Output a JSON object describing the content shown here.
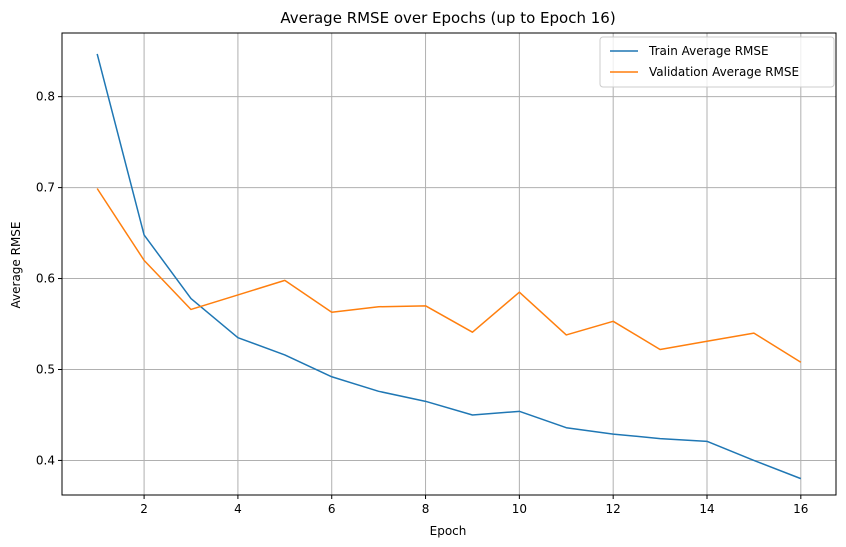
{
  "chart_data": {
    "type": "line",
    "title": "Average RMSE over Epochs (up to Epoch 16)",
    "xlabel": "Epoch",
    "ylabel": "Average RMSE",
    "x": [
      1,
      2,
      3,
      4,
      5,
      6,
      7,
      8,
      9,
      10,
      11,
      12,
      13,
      14,
      15,
      16
    ],
    "xlim": [
      0.25,
      16.75
    ],
    "ylim": [
      0.362,
      0.87
    ],
    "xticks": [
      2,
      4,
      6,
      8,
      10,
      12,
      14,
      16
    ],
    "yticks": [
      0.4,
      0.5,
      0.6,
      0.7,
      0.8
    ],
    "xtick_labels": [
      "2",
      "4",
      "6",
      "8",
      "10",
      "12",
      "14",
      "16"
    ],
    "ytick_labels": [
      "0.4",
      "0.5",
      "0.6",
      "0.7",
      "0.8"
    ],
    "grid": true,
    "legend_position": "top-right",
    "series": [
      {
        "name": "Train Average RMSE",
        "color": "#1f77b4",
        "values": [
          0.847,
          0.648,
          0.578,
          0.535,
          0.516,
          0.492,
          0.476,
          0.465,
          0.45,
          0.454,
          0.436,
          0.429,
          0.424,
          0.421,
          0.4,
          0.38
        ]
      },
      {
        "name": "Validation Average RMSE",
        "color": "#ff7f0e",
        "values": [
          0.699,
          0.62,
          0.566,
          0.582,
          0.598,
          0.563,
          0.569,
          0.57,
          0.541,
          0.585,
          0.538,
          0.553,
          0.522,
          0.531,
          0.54,
          0.508
        ]
      }
    ]
  }
}
